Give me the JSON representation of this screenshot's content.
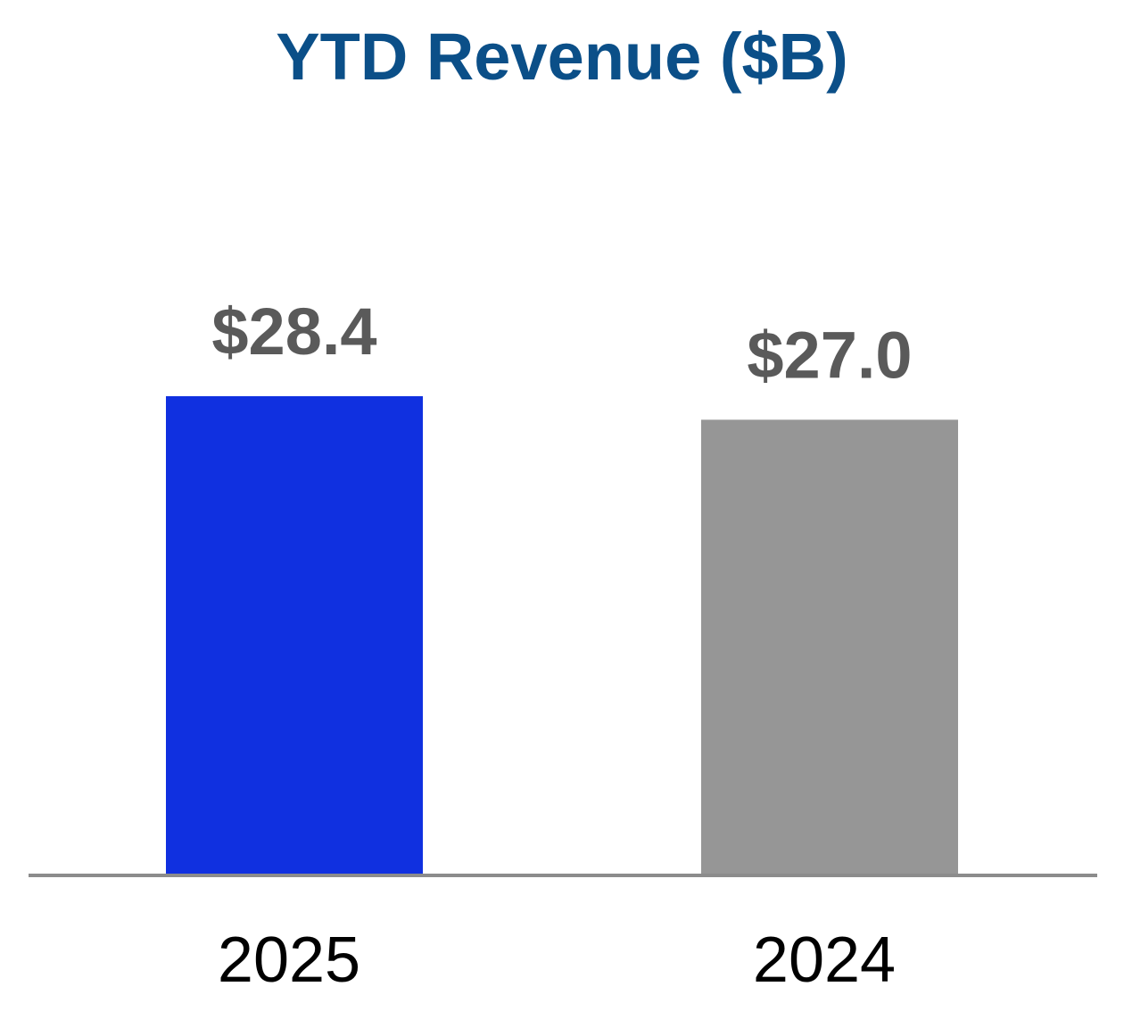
{
  "colors": {
    "title": "#0B4F88",
    "value_label": "#5A5A5A",
    "category_label": "#000000",
    "axis": "#8C8C8C"
  },
  "chart_data": {
    "type": "bar",
    "title": "YTD Revenue ($B)",
    "categories": [
      "2025",
      "2024"
    ],
    "values": [
      28.4,
      27.0
    ],
    "value_labels": [
      "$28.4",
      "$27.0"
    ],
    "bar_colors": [
      "#1030E0",
      "#969696"
    ],
    "xlabel": "",
    "ylabel": "",
    "ylim": [
      0,
      28.4
    ],
    "grid": false,
    "legend": "none"
  }
}
